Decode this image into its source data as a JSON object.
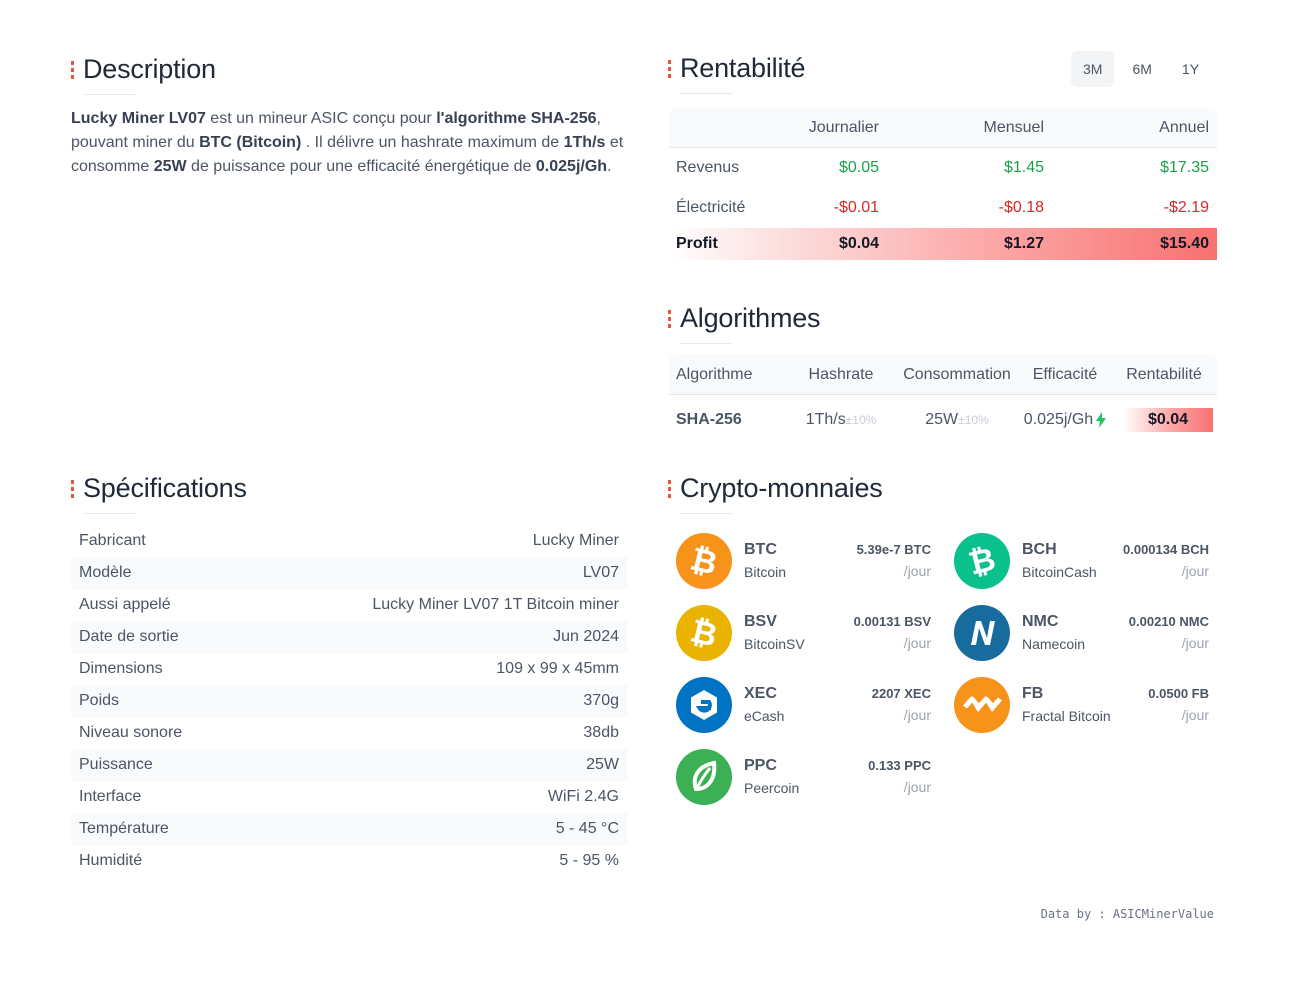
{
  "sections": {
    "description": "Description",
    "rentabilite": "Rentabilité",
    "algorithmes": "Algorithmes",
    "specifications": "Spécifications",
    "crypto": "Crypto-monnaies"
  },
  "description": {
    "parts": [
      {
        "t": "Lucky Miner LV07",
        "b": true
      },
      {
        "t": " est un mineur ASIC conçu pour ",
        "b": false
      },
      {
        "t": "l'algorithme SHA-256",
        "b": true
      },
      {
        "t": ", pouvant miner du ",
        "b": false
      },
      {
        "t": "BTC (Bitcoin)",
        "b": true
      },
      {
        "t": " . Il délivre un hashrate maximum de ",
        "b": false
      },
      {
        "t": "1Th/s",
        "b": true
      },
      {
        "t": " et consomme ",
        "b": false
      },
      {
        "t": "25W",
        "b": true
      },
      {
        "t": " de puissance pour une efficacité énergétique de ",
        "b": false
      },
      {
        "t": "0.025j/Gh",
        "b": true
      },
      {
        "t": ".",
        "b": false
      }
    ]
  },
  "periods": {
    "items": [
      "3M",
      "6M",
      "1Y"
    ],
    "active": "3M"
  },
  "profitability": {
    "headers": [
      "",
      "Journalier",
      "Mensuel",
      "Annuel"
    ],
    "rows": [
      {
        "label": "Revenus",
        "values": [
          "$0.05",
          "$1.45",
          "$17.35"
        ],
        "tone": "green"
      },
      {
        "label": "Électricité",
        "values": [
          "-$0.01",
          "-$0.18",
          "-$2.19"
        ],
        "tone": "red"
      },
      {
        "label": "Profit",
        "values": [
          "$0.04",
          "$1.27",
          "$15.40"
        ],
        "tone": "profit"
      }
    ]
  },
  "algorithms": {
    "headers": [
      "Algorithme",
      "Hashrate",
      "Consommation",
      "Efficacité",
      "Rentabilité"
    ],
    "rows": [
      {
        "name": "SHA-256",
        "hashrate": "1Th/s",
        "hashrate_tol": "±10%",
        "power": "25W",
        "power_tol": "±10%",
        "efficiency": "0.025j/Gh",
        "profit": "$0.04"
      }
    ]
  },
  "specs": [
    {
      "label": "Fabricant",
      "value": "Lucky Miner"
    },
    {
      "label": "Modèle",
      "value": "LV07"
    },
    {
      "label": "Aussi appelé",
      "value": "Lucky Miner LV07 1T Bitcoin miner"
    },
    {
      "label": "Date de sortie",
      "value": "Jun 2024"
    },
    {
      "label": "Dimensions",
      "value": "109 x 99 x 45mm"
    },
    {
      "label": "Poids",
      "value": "370g"
    },
    {
      "label": "Niveau sonore",
      "value": "38db"
    },
    {
      "label": "Puissance",
      "value": "25W"
    },
    {
      "label": "Interface",
      "value": "WiFi 2.4G"
    },
    {
      "label": "Température",
      "value": "5 - 45 °C"
    },
    {
      "label": "Humidité",
      "value": "5 - 95 %"
    }
  ],
  "coins": [
    {
      "symbol": "BTC",
      "name": "Bitcoin",
      "amount": "5.39e-7 BTC",
      "unit": "/jour",
      "color": "#f7931a",
      "icon": "bitcoin-icon"
    },
    {
      "symbol": "BCH",
      "name": "BitcoinCash",
      "amount": "0.000134 BCH",
      "unit": "/jour",
      "color": "#0ac18e",
      "icon": "bitcoin-cash-icon"
    },
    {
      "symbol": "BSV",
      "name": "BitcoinSV",
      "amount": "0.00131 BSV",
      "unit": "/jour",
      "color": "#eab300",
      "icon": "bitcoin-sv-icon"
    },
    {
      "symbol": "NMC",
      "name": "Namecoin",
      "amount": "0.00210 NMC",
      "unit": "/jour",
      "color": "#186c9d",
      "icon": "namecoin-icon"
    },
    {
      "symbol": "XEC",
      "name": "eCash",
      "amount": "2207 XEC",
      "unit": "/jour",
      "color": "#0074c2",
      "icon": "ecash-icon"
    },
    {
      "symbol": "FB",
      "name": "Fractal Bitcoin",
      "amount": "0.0500 FB",
      "unit": "/jour",
      "color": "#f7931a",
      "icon": "fractal-bitcoin-icon"
    },
    {
      "symbol": "PPC",
      "name": "Peercoin",
      "amount": "0.133 PPC",
      "unit": "/jour",
      "color": "#3cb054",
      "icon": "peercoin-icon"
    }
  ],
  "credit": "Data by : ASICMinerValue"
}
